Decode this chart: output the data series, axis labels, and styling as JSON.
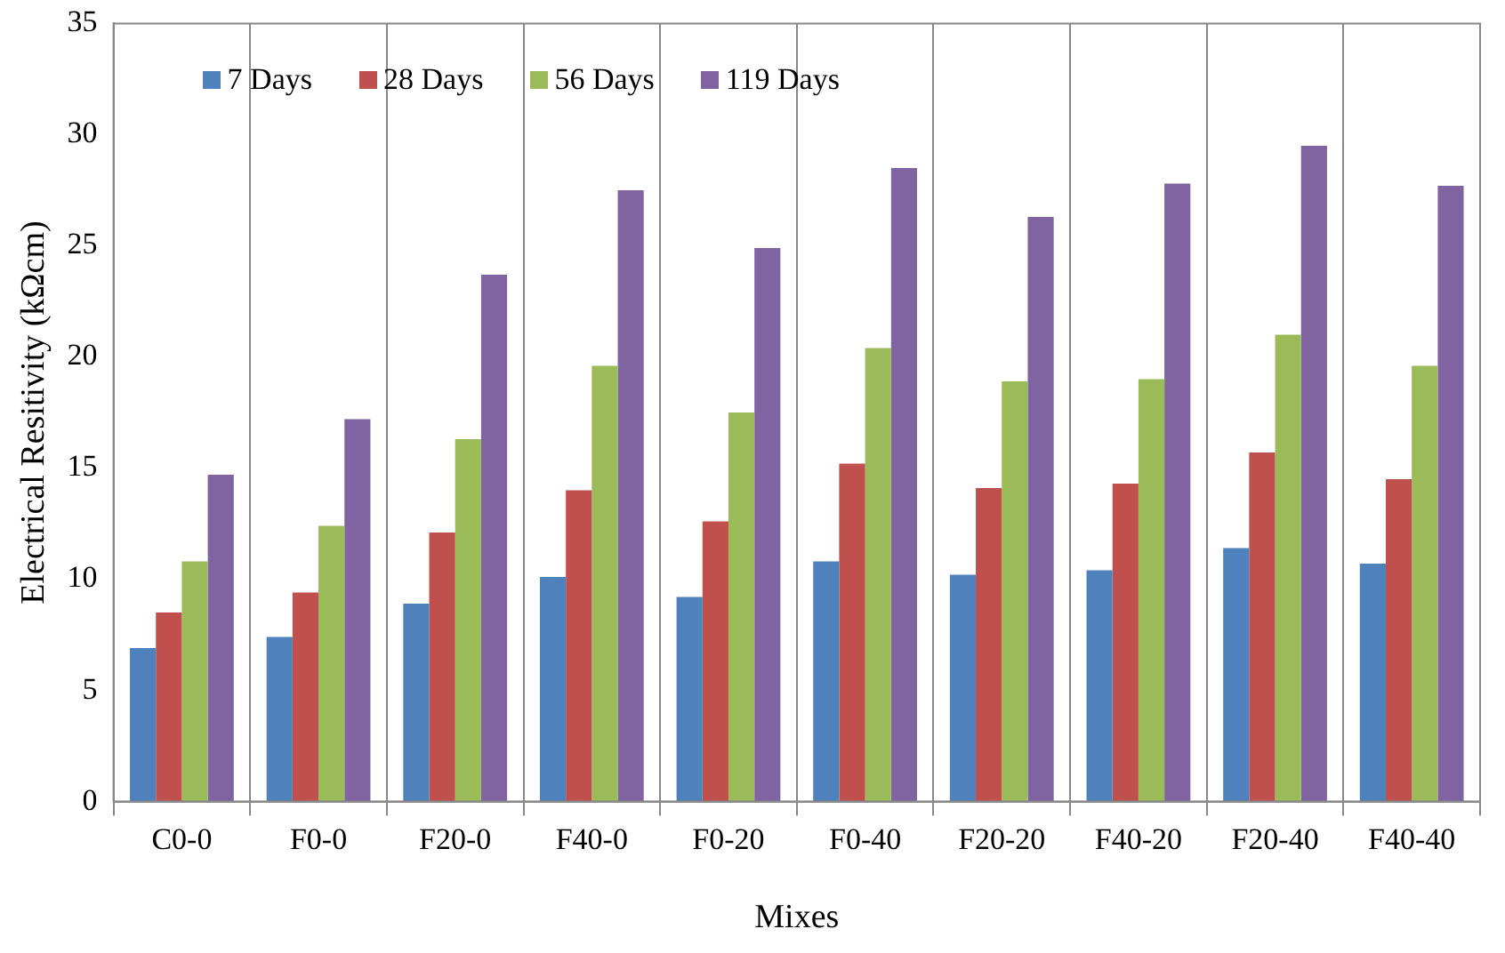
{
  "chart_data": {
    "type": "bar",
    "xlabel": "Mixes",
    "ylabel": "Electrical Resitivity (kΩcm)",
    "categories": [
      "C0-0",
      "F0-0",
      "F20-0",
      "F40-0",
      "F0-20",
      "F0-40",
      "F20-20",
      "F40-20",
      "F20-40",
      "F40-40"
    ],
    "series": [
      {
        "name": "7 Days",
        "color": "#4f81bd",
        "values": [
          6.9,
          7.4,
          8.9,
          10.1,
          9.2,
          10.8,
          10.2,
          10.4,
          11.4,
          10.7
        ]
      },
      {
        "name": "28 Days",
        "color": "#c0504d",
        "values": [
          8.5,
          9.4,
          12.1,
          14.0,
          12.6,
          15.2,
          14.1,
          14.3,
          15.7,
          14.5
        ]
      },
      {
        "name": "56 Days",
        "color": "#9bbb59",
        "values": [
          10.8,
          12.4,
          16.3,
          19.6,
          17.5,
          20.4,
          18.9,
          19.0,
          21.0,
          19.6
        ]
      },
      {
        "name": "119 Days",
        "color": "#8064a2",
        "values": [
          14.7,
          17.2,
          23.7,
          27.5,
          24.9,
          28.5,
          26.3,
          27.8,
          29.5,
          27.7
        ]
      }
    ],
    "ylim": [
      0,
      35
    ],
    "yticks": [
      0,
      5,
      10,
      15,
      20,
      25,
      30,
      35
    ],
    "grid": "x",
    "legend": "top left"
  }
}
